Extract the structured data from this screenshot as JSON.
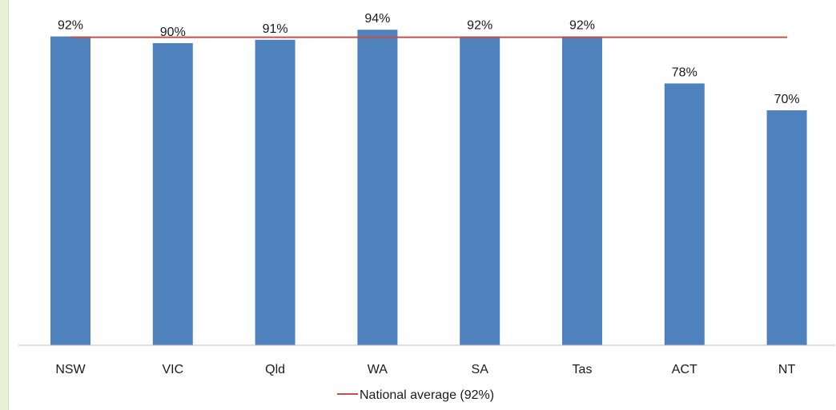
{
  "chart_data": {
    "type": "bar",
    "categories": [
      "NSW",
      "VIC",
      "Qld",
      "WA",
      "SA",
      "Tas",
      "ACT",
      "NT"
    ],
    "series": [
      {
        "values": [
          92,
          90,
          91,
          94,
          92,
          92,
          78,
          70
        ]
      }
    ],
    "data_labels": [
      "92%",
      "90%",
      "91%",
      "94%",
      "92%",
      "92%",
      "78%",
      "70%"
    ],
    "reference_line": {
      "value": 92,
      "label": "National average (92%)",
      "color": "#c0504d"
    },
    "bar_color": "#4f81bd",
    "ylim": [
      0,
      100
    ],
    "grid": false,
    "legend_position": "bottom-center"
  }
}
